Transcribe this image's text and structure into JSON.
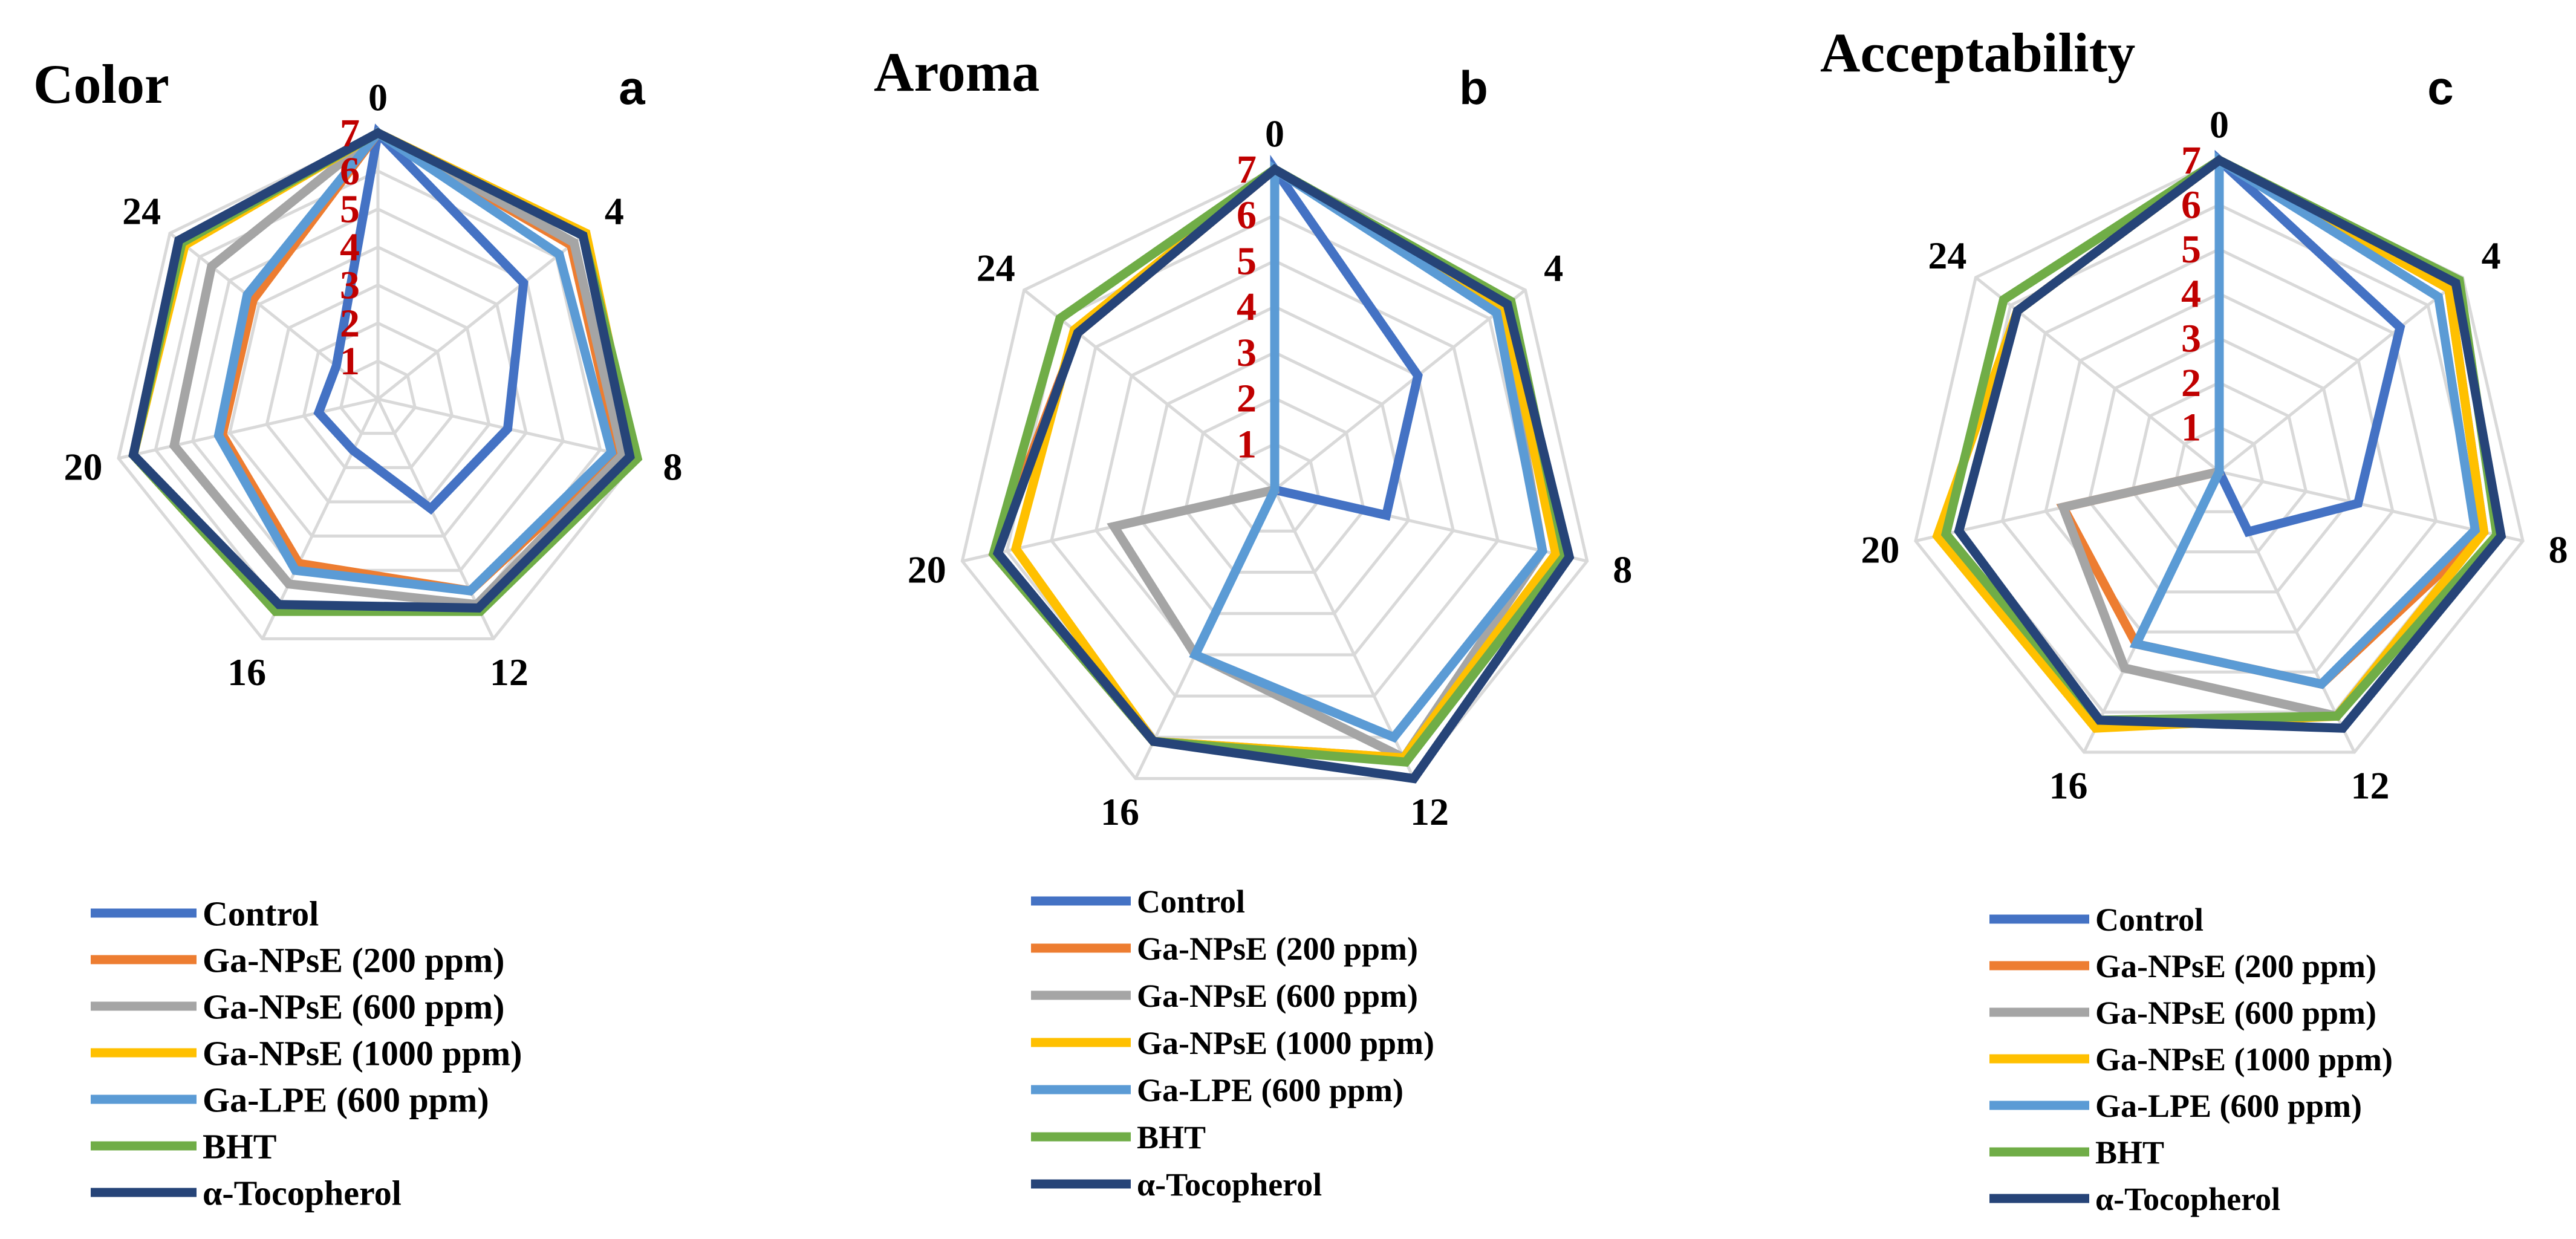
{
  "figure": {
    "series_colors": [
      "#4472c4",
      "#ed7d31",
      "#a5a5a5",
      "#ffc000",
      "#5b9bd5",
      "#70ad47",
      "#264478"
    ]
  },
  "chart_data": [
    {
      "type": "radar",
      "title": "Color",
      "panel_label": "a",
      "axes": [
        "0",
        "4",
        "8",
        "12",
        "16",
        "20",
        "24"
      ],
      "rlim": [
        0,
        7
      ],
      "ring_labels": [
        "1",
        "2",
        "3",
        "4",
        "5",
        "6",
        "7"
      ],
      "grid": true,
      "legend_position": "bottom",
      "series": [
        {
          "name": "Control",
          "values": [
            7,
            4.9,
            3.5,
            3.2,
            1.5,
            1.6,
            1.4
          ]
        },
        {
          "name": "Ga-NPsE (200 ppm)",
          "values": [
            7,
            6.5,
            6.5,
            5.6,
            4.8,
            4.2,
            4.2
          ]
        },
        {
          "name": "Ga-NPsE  (600 ppm)",
          "values": [
            7,
            6.6,
            6.6,
            6.0,
            5.4,
            5.5,
            5.6
          ]
        },
        {
          "name": "Ga-NPsE (1000 ppm)",
          "values": [
            7,
            7.0,
            6.9,
            6.1,
            6.2,
            6.6,
            6.5
          ]
        },
        {
          "name": "Ga-LPE (600 ppm)",
          "values": [
            7,
            6.1,
            6.3,
            5.6,
            5.0,
            4.3,
            4.4
          ]
        },
        {
          "name": "BHT",
          "values": [
            7,
            6.9,
            7.0,
            6.2,
            6.2,
            6.6,
            6.6
          ]
        },
        {
          "name": "α-Tocopherol",
          "values": [
            7,
            6.9,
            6.8,
            6.1,
            6.0,
            6.6,
            6.7
          ]
        }
      ]
    },
    {
      "type": "radar",
      "title": "Aroma",
      "panel_label": "b",
      "axes": [
        "0",
        "4",
        "8",
        "12",
        "16",
        "20",
        "24"
      ],
      "rlim": [
        0,
        7
      ],
      "ring_labels": [
        "1",
        "2",
        "3",
        "4",
        "5",
        "6",
        "7"
      ],
      "grid": true,
      "legend_position": "bottom",
      "series": [
        {
          "name": "Control",
          "values": [
            7,
            4.0,
            2.5,
            0,
            0,
            0,
            0
          ]
        },
        {
          "name": "Ga-NPsE (200 ppm)",
          "values": [
            7,
            6.4,
            6.3,
            6.5,
            6.1,
            6.3,
            5.5
          ]
        },
        {
          "name": "Ga-NPsE  (600 ppm)",
          "values": [
            7,
            6.3,
            6.0,
            6.5,
            4.0,
            3.6,
            0
          ]
        },
        {
          "name": "Ga-NPsE (1000 ppm)",
          "values": [
            7,
            6.4,
            6.3,
            6.5,
            6.1,
            5.8,
            5.6
          ]
        },
        {
          "name": "Ga-LPE (600 ppm)",
          "values": [
            7,
            6.2,
            6.0,
            6.0,
            4.0,
            0,
            0
          ]
        },
        {
          "name": "BHT",
          "values": [
            7,
            6.6,
            6.5,
            6.6,
            6.1,
            6.3,
            6.0
          ]
        },
        {
          "name": "α-Tocopherol",
          "values": [
            7,
            6.5,
            6.6,
            7.0,
            6.1,
            6.2,
            5.5
          ]
        }
      ]
    },
    {
      "type": "radar",
      "title": "Acceptability",
      "panel_label": "c",
      "axes": [
        "0",
        "4",
        "8",
        "12",
        "16",
        "20",
        "24"
      ],
      "rlim": [
        0,
        7
      ],
      "ring_labels": [
        "1",
        "2",
        "3",
        "4",
        "5",
        "6",
        "7"
      ],
      "grid": true,
      "legend_position": "bottom",
      "series": [
        {
          "name": "Control",
          "values": [
            7,
            5.2,
            3.2,
            1.5,
            0,
            0,
            0
          ]
        },
        {
          "name": "Ga-NPsE (200 ppm)",
          "values": [
            7,
            6.6,
            6.1,
            5.3,
            4.3,
            3.6,
            0
          ]
        },
        {
          "name": "Ga-NPsE  (600 ppm)",
          "values": [
            7,
            6.6,
            6.1,
            6.1,
            4.9,
            3.6,
            0
          ]
        },
        {
          "name": "Ga-NPsE (1000 ppm)",
          "values": [
            7,
            6.6,
            6.1,
            6.1,
            6.4,
            6.5,
            5.8
          ]
        },
        {
          "name": "Ga-LPE (600 ppm)",
          "values": [
            7,
            6.3,
            5.9,
            5.3,
            4.3,
            0,
            0
          ]
        },
        {
          "name": "BHT",
          "values": [
            7,
            6.9,
            6.4,
            6.1,
            6.2,
            6.3,
            6.2
          ]
        },
        {
          "name": "α-Tocopherol",
          "values": [
            7,
            6.8,
            6.5,
            6.4,
            6.2,
            6.0,
            5.8
          ]
        }
      ]
    }
  ]
}
